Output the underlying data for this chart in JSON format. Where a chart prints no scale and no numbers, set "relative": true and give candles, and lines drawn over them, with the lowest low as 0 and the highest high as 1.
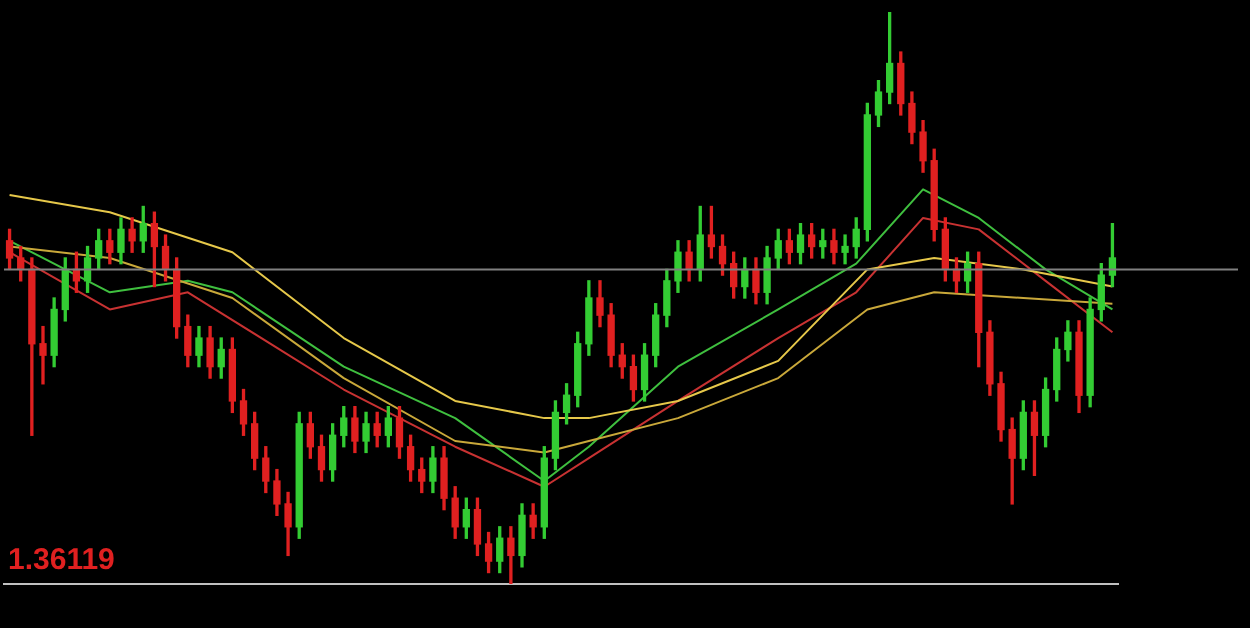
{
  "chart_data": {
    "type": "candlestick",
    "relative": true,
    "categories": [
      null,
      null,
      null,
      null,
      null,
      null,
      null,
      null,
      null,
      null,
      null,
      null,
      null,
      null,
      null,
      null,
      null,
      null,
      null,
      null,
      null,
      null,
      null,
      null,
      null,
      null,
      null,
      null,
      null,
      null,
      null,
      null,
      null,
      null,
      null,
      null,
      null,
      null,
      null,
      null,
      null,
      null,
      null,
      null,
      null,
      null,
      null,
      null,
      null,
      null,
      null,
      null,
      null,
      null,
      null,
      null,
      null,
      null,
      null,
      null,
      null,
      null,
      null,
      null,
      null,
      null,
      null,
      null,
      null,
      null,
      null,
      null,
      null,
      null,
      null,
      null,
      null,
      null,
      null,
      null,
      null,
      null,
      null,
      null,
      null,
      null,
      null,
      null,
      null,
      null,
      null,
      null,
      null,
      null,
      null,
      null,
      null,
      null,
      null,
      null
    ],
    "ohlc": [
      [
        0.6,
        0.62,
        0.55,
        0.57
      ],
      [
        0.57,
        0.59,
        0.53,
        0.55
      ],
      [
        0.55,
        0.57,
        0.26,
        0.42
      ],
      [
        0.42,
        0.45,
        0.35,
        0.4
      ],
      [
        0.4,
        0.5,
        0.38,
        0.48
      ],
      [
        0.48,
        0.57,
        0.46,
        0.55
      ],
      [
        0.55,
        0.58,
        0.51,
        0.53
      ],
      [
        0.53,
        0.59,
        0.51,
        0.57
      ],
      [
        0.57,
        0.62,
        0.55,
        0.6
      ],
      [
        0.6,
        0.62,
        0.56,
        0.58
      ],
      [
        0.58,
        0.64,
        0.56,
        0.62
      ],
      [
        0.62,
        0.64,
        0.58,
        0.6
      ],
      [
        0.6,
        0.66,
        0.58,
        0.63
      ],
      [
        0.63,
        0.65,
        0.52,
        0.59
      ],
      [
        0.59,
        0.61,
        0.53,
        0.55
      ],
      [
        0.55,
        0.57,
        0.43,
        0.45
      ],
      [
        0.45,
        0.47,
        0.38,
        0.4
      ],
      [
        0.4,
        0.45,
        0.38,
        0.43
      ],
      [
        0.43,
        0.45,
        0.36,
        0.38
      ],
      [
        0.38,
        0.43,
        0.36,
        0.41
      ],
      [
        0.41,
        0.43,
        0.3,
        0.32
      ],
      [
        0.32,
        0.34,
        0.26,
        0.28
      ],
      [
        0.28,
        0.3,
        0.2,
        0.22
      ],
      [
        0.22,
        0.24,
        0.16,
        0.18
      ],
      [
        0.18,
        0.2,
        0.12,
        0.14
      ],
      [
        0.14,
        0.16,
        0.05,
        0.1
      ],
      [
        0.1,
        0.3,
        0.08,
        0.28
      ],
      [
        0.28,
        0.3,
        0.22,
        0.24
      ],
      [
        0.24,
        0.26,
        0.18,
        0.2
      ],
      [
        0.2,
        0.28,
        0.18,
        0.26
      ],
      [
        0.26,
        0.31,
        0.24,
        0.29
      ],
      [
        0.29,
        0.31,
        0.23,
        0.25
      ],
      [
        0.25,
        0.3,
        0.23,
        0.28
      ],
      [
        0.28,
        0.3,
        0.24,
        0.26
      ],
      [
        0.26,
        0.31,
        0.24,
        0.29
      ],
      [
        0.29,
        0.31,
        0.22,
        0.24
      ],
      [
        0.24,
        0.26,
        0.18,
        0.2
      ],
      [
        0.2,
        0.22,
        0.16,
        0.18
      ],
      [
        0.18,
        0.24,
        0.16,
        0.22
      ],
      [
        0.22,
        0.24,
        0.13,
        0.15
      ],
      [
        0.15,
        0.17,
        0.08,
        0.1
      ],
      [
        0.1,
        0.15,
        0.08,
        0.13
      ],
      [
        0.13,
        0.15,
        0.05,
        0.07
      ],
      [
        0.07,
        0.09,
        0.02,
        0.04
      ],
      [
        0.04,
        0.1,
        0.02,
        0.08
      ],
      [
        0.08,
        0.1,
        0.0,
        0.05
      ],
      [
        0.05,
        0.14,
        0.03,
        0.12
      ],
      [
        0.12,
        0.14,
        0.08,
        0.1
      ],
      [
        0.1,
        0.24,
        0.08,
        0.22
      ],
      [
        0.22,
        0.32,
        0.2,
        0.3
      ],
      [
        0.3,
        0.35,
        0.28,
        0.33
      ],
      [
        0.33,
        0.44,
        0.31,
        0.42
      ],
      [
        0.42,
        0.53,
        0.4,
        0.5
      ],
      [
        0.5,
        0.53,
        0.45,
        0.47
      ],
      [
        0.47,
        0.49,
        0.38,
        0.4
      ],
      [
        0.4,
        0.42,
        0.36,
        0.38
      ],
      [
        0.38,
        0.4,
        0.32,
        0.34
      ],
      [
        0.34,
        0.42,
        0.32,
        0.4
      ],
      [
        0.4,
        0.49,
        0.38,
        0.47
      ],
      [
        0.47,
        0.55,
        0.45,
        0.53
      ],
      [
        0.53,
        0.6,
        0.51,
        0.58
      ],
      [
        0.58,
        0.6,
        0.53,
        0.55
      ],
      [
        0.55,
        0.66,
        0.53,
        0.61
      ],
      [
        0.61,
        0.66,
        0.57,
        0.59
      ],
      [
        0.59,
        0.61,
        0.54,
        0.56
      ],
      [
        0.56,
        0.58,
        0.5,
        0.52
      ],
      [
        0.52,
        0.57,
        0.5,
        0.55
      ],
      [
        0.55,
        0.57,
        0.49,
        0.51
      ],
      [
        0.51,
        0.59,
        0.49,
        0.57
      ],
      [
        0.57,
        0.62,
        0.55,
        0.6
      ],
      [
        0.6,
        0.62,
        0.56,
        0.58
      ],
      [
        0.58,
        0.63,
        0.56,
        0.61
      ],
      [
        0.61,
        0.63,
        0.57,
        0.59
      ],
      [
        0.59,
        0.62,
        0.57,
        0.6
      ],
      [
        0.6,
        0.62,
        0.56,
        0.58
      ],
      [
        0.58,
        0.61,
        0.56,
        0.59
      ],
      [
        0.59,
        0.64,
        0.57,
        0.62
      ],
      [
        0.62,
        0.84,
        0.6,
        0.82
      ],
      [
        0.82,
        0.88,
        0.8,
        0.86
      ],
      [
        0.86,
        1.0,
        0.84,
        0.91
      ],
      [
        0.91,
        0.93,
        0.82,
        0.84
      ],
      [
        0.84,
        0.86,
        0.77,
        0.79
      ],
      [
        0.79,
        0.81,
        0.72,
        0.74
      ],
      [
        0.74,
        0.76,
        0.6,
        0.62
      ],
      [
        0.62,
        0.64,
        0.53,
        0.55
      ],
      [
        0.55,
        0.57,
        0.51,
        0.53
      ],
      [
        0.53,
        0.58,
        0.51,
        0.56
      ],
      [
        0.56,
        0.58,
        0.38,
        0.44
      ],
      [
        0.44,
        0.46,
        0.33,
        0.35
      ],
      [
        0.35,
        0.37,
        0.25,
        0.27
      ],
      [
        0.27,
        0.29,
        0.14,
        0.22
      ],
      [
        0.22,
        0.32,
        0.2,
        0.3
      ],
      [
        0.3,
        0.32,
        0.19,
        0.26
      ],
      [
        0.26,
        0.36,
        0.24,
        0.34
      ],
      [
        0.34,
        0.43,
        0.32,
        0.41
      ],
      [
        0.41,
        0.46,
        0.39,
        0.44
      ],
      [
        0.44,
        0.46,
        0.3,
        0.33
      ],
      [
        0.33,
        0.5,
        0.31,
        0.48
      ],
      [
        0.48,
        0.56,
        0.46,
        0.54
      ],
      [
        0.54,
        0.63,
        0.52,
        0.57
      ]
    ],
    "series": [
      {
        "type": "line",
        "color": "#e6c84a",
        "values": [
          0.68,
          null,
          null,
          null,
          null,
          null,
          null,
          null,
          null,
          0.65,
          null,
          null,
          null,
          null,
          null,
          null,
          null,
          null,
          null,
          null,
          0.58,
          null,
          null,
          null,
          null,
          null,
          null,
          null,
          null,
          null,
          0.43,
          null,
          null,
          null,
          null,
          null,
          null,
          null,
          null,
          null,
          0.32,
          null,
          null,
          null,
          null,
          null,
          null,
          null,
          0.29,
          null,
          null,
          null,
          0.29,
          null,
          null,
          null,
          null,
          null,
          null,
          null,
          0.32,
          null,
          null,
          null,
          null,
          null,
          null,
          null,
          null,
          0.39,
          null,
          null,
          null,
          null,
          null,
          null,
          null,
          0.55,
          null,
          null,
          null,
          null,
          null,
          0.57,
          null,
          null,
          null,
          null,
          null,
          null,
          null,
          0.55,
          null,
          null,
          null,
          null,
          null,
          null,
          null,
          0.52
        ]
      },
      {
        "type": "line",
        "color": "#c9a83a",
        "values": [
          0.59,
          null,
          null,
          null,
          null,
          null,
          null,
          null,
          null,
          0.57,
          null,
          null,
          null,
          null,
          null,
          null,
          null,
          null,
          null,
          null,
          0.5,
          null,
          null,
          null,
          null,
          null,
          null,
          null,
          null,
          null,
          0.36,
          null,
          null,
          null,
          null,
          null,
          null,
          null,
          null,
          null,
          0.25,
          null,
          null,
          null,
          null,
          null,
          null,
          null,
          0.23,
          null,
          null,
          null,
          0.25,
          null,
          null,
          null,
          null,
          null,
          null,
          null,
          0.29,
          null,
          null,
          null,
          null,
          null,
          null,
          null,
          null,
          0.36,
          null,
          null,
          null,
          null,
          null,
          null,
          null,
          0.48,
          null,
          null,
          null,
          null,
          null,
          0.51,
          null,
          null,
          null,
          null,
          null,
          null,
          null,
          0.5,
          null,
          null,
          null,
          null,
          null,
          null,
          null,
          0.49
        ]
      },
      {
        "type": "line",
        "color": "#3fbf3f",
        "values": [
          0.6,
          null,
          null,
          null,
          null,
          null,
          null,
          null,
          null,
          0.51,
          null,
          null,
          null,
          null,
          null,
          null,
          0.53,
          null,
          null,
          null,
          0.51,
          null,
          null,
          null,
          null,
          null,
          null,
          null,
          null,
          null,
          0.38,
          null,
          null,
          null,
          null,
          null,
          null,
          null,
          null,
          null,
          0.29,
          null,
          null,
          null,
          null,
          null,
          null,
          null,
          0.18,
          null,
          null,
          null,
          0.24,
          null,
          null,
          null,
          null,
          null,
          null,
          null,
          0.38,
          null,
          null,
          null,
          null,
          null,
          null,
          null,
          null,
          0.48,
          null,
          null,
          null,
          null,
          null,
          null,
          0.56,
          null,
          null,
          null,
          null,
          null,
          0.69,
          null,
          null,
          null,
          null,
          0.64,
          null,
          null,
          null,
          null,
          null,
          0.55,
          null,
          null,
          null,
          null,
          null,
          0.48
        ]
      },
      {
        "type": "line",
        "color": "#c83232",
        "values": [
          0.58,
          null,
          null,
          null,
          null,
          null,
          null,
          null,
          null,
          0.48,
          null,
          null,
          null,
          null,
          null,
          null,
          0.51,
          null,
          null,
          null,
          null,
          null,
          null,
          null,
          null,
          null,
          null,
          null,
          null,
          null,
          0.34,
          null,
          null,
          null,
          null,
          null,
          null,
          null,
          null,
          null,
          0.24,
          null,
          null,
          null,
          null,
          null,
          null,
          null,
          0.17,
          null,
          null,
          null,
          0.22,
          null,
          null,
          null,
          null,
          null,
          null,
          null,
          0.32,
          null,
          null,
          null,
          null,
          null,
          null,
          null,
          null,
          0.43,
          null,
          null,
          null,
          null,
          null,
          null,
          0.51,
          null,
          null,
          null,
          null,
          null,
          0.64,
          null,
          null,
          null,
          null,
          0.62,
          null,
          null,
          null,
          null,
          null,
          0.53,
          null,
          null,
          null,
          null,
          null,
          0.44
        ]
      }
    ],
    "ref_lines": [
      {
        "axis": "y",
        "value": 0.55,
        "color": "#808080"
      }
    ],
    "annotations": [
      "1.36119"
    ]
  }
}
